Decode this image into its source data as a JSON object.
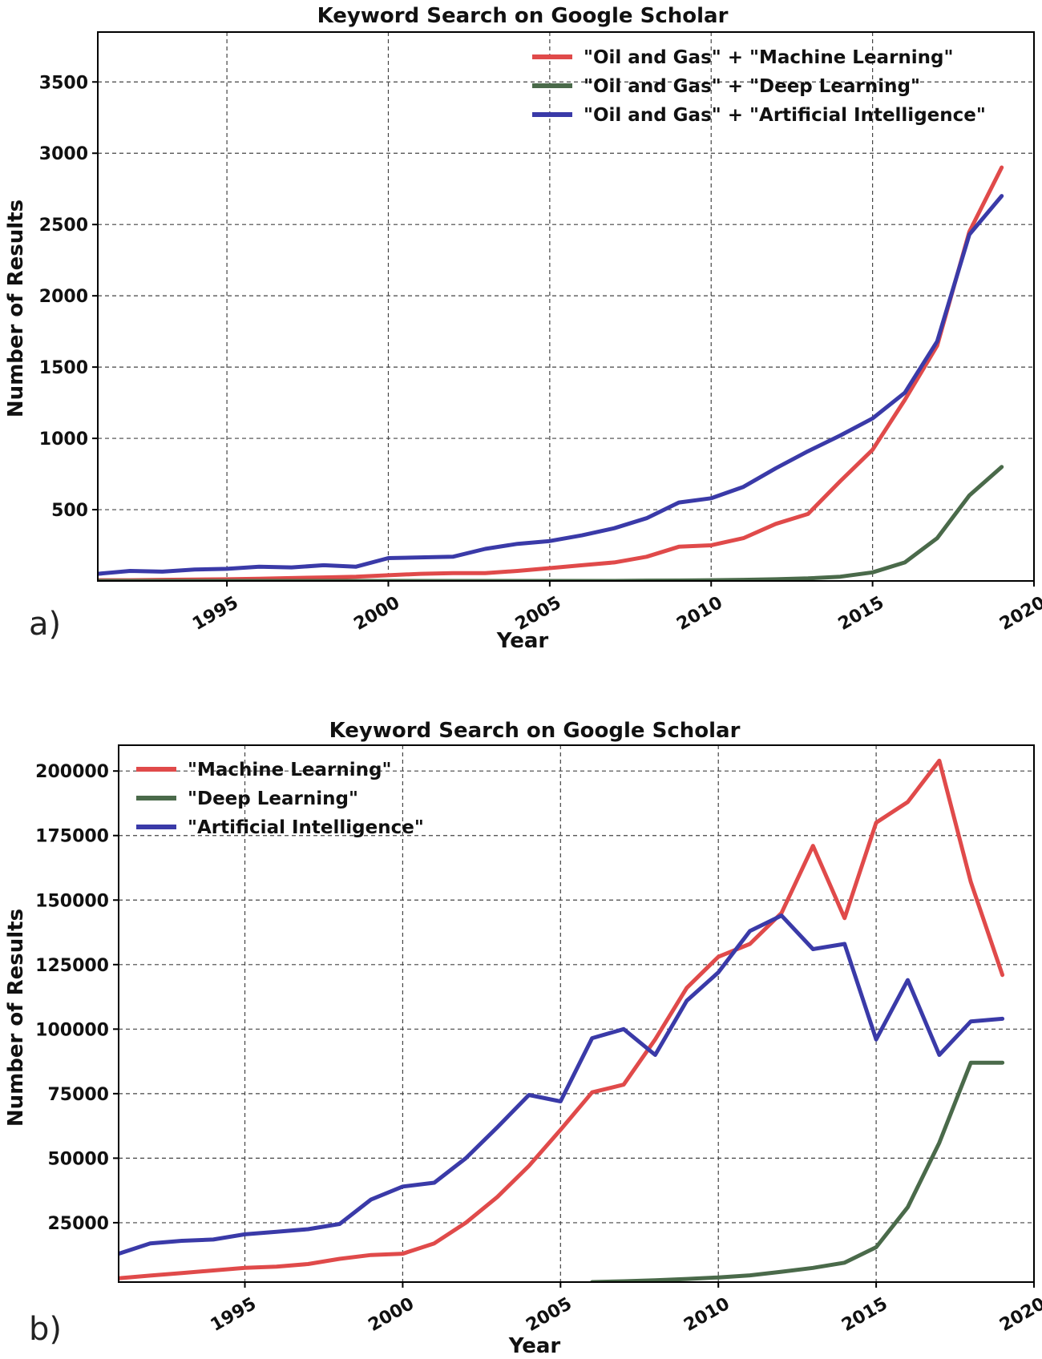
{
  "chart_data": [
    {
      "panel_label": "a)",
      "type": "line",
      "title": "Keyword Search on Google Scholar",
      "xlabel": "Year",
      "ylabel": "Number of Results",
      "xlim": [
        1991,
        2020
      ],
      "ylim": [
        0,
        3850
      ],
      "x_ticks": [
        1995,
        2000,
        2005,
        2010,
        2015,
        2020
      ],
      "y_ticks": [
        500,
        1000,
        1500,
        2000,
        2500,
        3000,
        3500
      ],
      "grid": true,
      "legend_position": "top-right",
      "x": [
        1991,
        1992,
        1993,
        1994,
        1995,
        1996,
        1997,
        1998,
        1999,
        2000,
        2001,
        2002,
        2003,
        2004,
        2005,
        2006,
        2007,
        2008,
        2009,
        2010,
        2011,
        2012,
        2013,
        2014,
        2015,
        2016,
        2017,
        2018,
        2019
      ],
      "series": [
        {
          "name": "\"Oil and Gas\" + \"Machine Learning\"",
          "color": "#e04a4a",
          "values": [
            5,
            5,
            8,
            10,
            12,
            15,
            20,
            25,
            30,
            40,
            50,
            55,
            55,
            70,
            90,
            110,
            130,
            170,
            240,
            250,
            300,
            400,
            470,
            700,
            920,
            1270,
            1650,
            2450,
            2900
          ]
        },
        {
          "name": "\"Oil and Gas\" + \"Deep Learning\"",
          "color": "#4a6a4a",
          "values": [
            0,
            0,
            0,
            0,
            0,
            0,
            0,
            0,
            0,
            0,
            0,
            0,
            0,
            0,
            0,
            0,
            0,
            2,
            3,
            5,
            8,
            12,
            18,
            30,
            60,
            130,
            300,
            600,
            800
          ]
        },
        {
          "name": "\"Oil and Gas\" + \"Artificial Intelligence\"",
          "color": "#3a3aa8",
          "values": [
            50,
            70,
            65,
            80,
            85,
            100,
            95,
            110,
            100,
            160,
            165,
            170,
            225,
            260,
            280,
            320,
            370,
            440,
            550,
            580,
            660,
            790,
            910,
            1020,
            1140,
            1320,
            1680,
            2430,
            2700
          ]
        }
      ]
    },
    {
      "panel_label": "b)",
      "type": "line",
      "title": "Keyword Search on Google Scholar",
      "xlabel": "Year",
      "ylabel": "Number of Results",
      "xlim": [
        1991,
        2020
      ],
      "ylim": [
        2000,
        210000
      ],
      "x_ticks": [
        1995,
        2000,
        2005,
        2010,
        2015,
        2020
      ],
      "y_ticks": [
        25000,
        50000,
        75000,
        100000,
        125000,
        150000,
        175000,
        200000
      ],
      "grid": true,
      "legend_position": "top-left",
      "x": [
        1991,
        1992,
        1993,
        1994,
        1995,
        1996,
        1997,
        1998,
        1999,
        2000,
        2001,
        2002,
        2003,
        2004,
        2005,
        2006,
        2007,
        2008,
        2009,
        2010,
        2011,
        2012,
        2013,
        2014,
        2015,
        2016,
        2017,
        2018,
        2019
      ],
      "series": [
        {
          "name": "\"Machine Learning\"",
          "color": "#e04a4a",
          "values": [
            3500,
            4500,
            5500,
            6500,
            7500,
            8000,
            9000,
            11000,
            12500,
            13000,
            17000,
            25000,
            35000,
            47000,
            61000,
            75500,
            78500,
            96000,
            116000,
            128000,
            133000,
            145000,
            171000,
            143000,
            180000,
            188000,
            204000,
            157000,
            121000
          ]
        },
        {
          "name": "\"Deep Learning\"",
          "color": "#4a6a4a",
          "values": [
            null,
            null,
            null,
            null,
            null,
            null,
            null,
            null,
            null,
            null,
            null,
            null,
            null,
            null,
            null,
            2000,
            2300,
            2700,
            3200,
            3800,
            4600,
            6000,
            7500,
            9500,
            15500,
            31000,
            56000,
            87000,
            87000
          ]
        },
        {
          "name": "\"Artificial Intelligence\"",
          "color": "#3a3aa8",
          "values": [
            13000,
            17000,
            18000,
            18500,
            20500,
            21500,
            22500,
            24500,
            34000,
            39000,
            40500,
            50000,
            62000,
            74500,
            72000,
            96500,
            100000,
            90000,
            111000,
            122000,
            138000,
            144000,
            131000,
            133000,
            96000,
            119000,
            90000,
            103000,
            104000
          ]
        }
      ]
    }
  ]
}
